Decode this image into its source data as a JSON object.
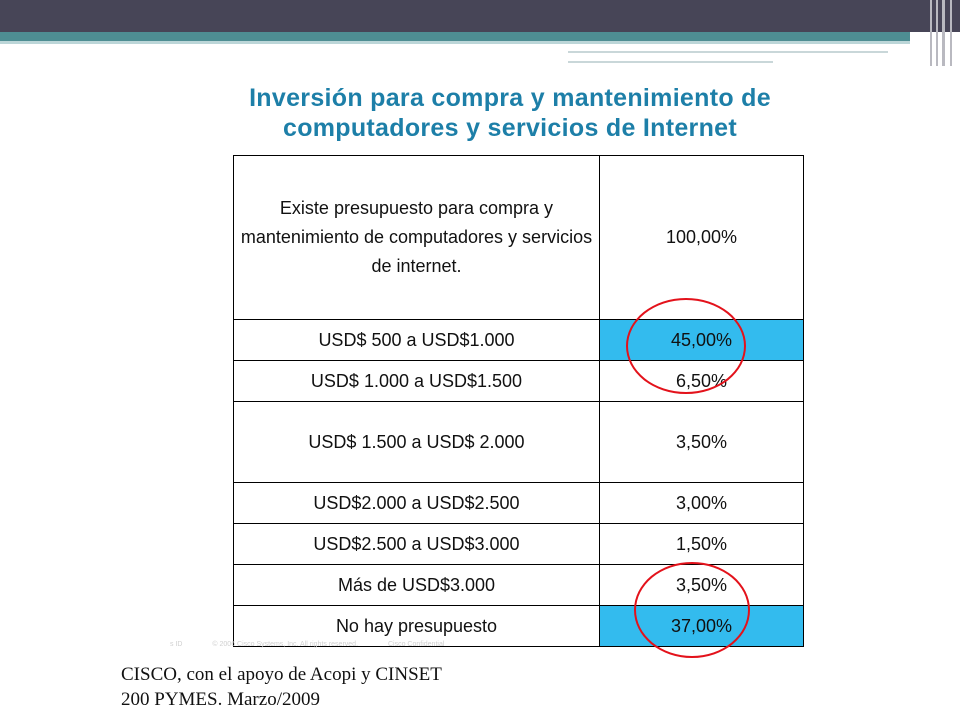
{
  "title": {
    "line1": "Inversión para compra y mantenimiento de",
    "line2": "computadores y servicios de Internet"
  },
  "table": {
    "rows": [
      {
        "range": "Existe presupuesto para compra y mantenimiento de computadores y servicios de internet.",
        "value": "100,00%"
      },
      {
        "range": "USD$ 500 a USD$1.000",
        "value": "45,00%"
      },
      {
        "range": "USD$ 1.000 a USD$1.500",
        "value": "6,50%"
      },
      {
        "range": "USD$ 1.500 a USD$ 2.000",
        "value": "3,50%"
      },
      {
        "range": "USD$2.000 a USD$2.500",
        "value": "3,00%"
      },
      {
        "range": "USD$2.500 a USD$3.000",
        "value": "1,50%"
      },
      {
        "range": "Más de USD$3.000",
        "value": "3,50%"
      },
      {
        "range": "No hay presupuesto",
        "value": "37,00%"
      }
    ]
  },
  "footer_faint": {
    "id": "s ID",
    "copyright": "© 2006 Cisco Systems, Inc. All rights reserved.",
    "confidential": "Cisco Confidential"
  },
  "source": {
    "line1": "CISCO, con el apoyo de Acopi y CINSET",
    "line2": "200 PYMES. Marzo/2009"
  },
  "colors": {
    "title": "#1d7fa8",
    "highlight": "#33bbee",
    "circle": "#e3121b",
    "banner_dark": "#474557",
    "banner_teal": "#4e8e93"
  }
}
